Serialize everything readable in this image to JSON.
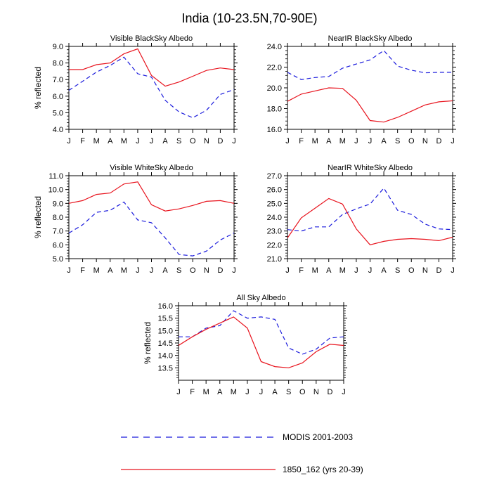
{
  "figure": {
    "title": "India (10-23.5N,70-90E)"
  },
  "colors": {
    "modis": "#1a1adc",
    "model": "#e8141e",
    "axis": "#000000"
  },
  "legend": {
    "placement": "bottom-center",
    "entries": [
      {
        "label": "MODIS 2001-2003",
        "style": "dashed",
        "color": "#1a1adc"
      },
      {
        "label": "1850_162 (yrs 20-39)",
        "style": "solid",
        "color": "#e8141e"
      }
    ]
  },
  "chart_data": [
    {
      "type": "line",
      "title": "Visible BlackSky Albedo",
      "ylabel": "% reflected",
      "xlabel": "",
      "categories": [
        "J",
        "F",
        "M",
        "A",
        "M",
        "J",
        "J",
        "A",
        "S",
        "O",
        "N",
        "D",
        "J"
      ],
      "ylim": [
        4.0,
        9.0
      ],
      "yticks": [
        4.0,
        5.0,
        6.0,
        7.0,
        8.0,
        9.0
      ],
      "ytick_labels": [
        "4.0",
        "5.0",
        "6.0",
        "7.0",
        "8.0",
        "9.0"
      ],
      "series": [
        {
          "name": "MODIS 2001-2003",
          "values": [
            6.35,
            6.9,
            7.45,
            7.85,
            8.35,
            7.35,
            7.15,
            5.75,
            5.05,
            4.7,
            5.15,
            6.1,
            6.4
          ]
        },
        {
          "name": "1850_162 (yrs 20-39)",
          "values": [
            7.6,
            7.6,
            7.9,
            8.0,
            8.55,
            8.85,
            7.25,
            6.6,
            6.85,
            7.2,
            7.55,
            7.7,
            7.6
          ]
        }
      ]
    },
    {
      "type": "line",
      "title": "NearIR BlackSky Albedo",
      "ylabel": "",
      "xlabel": "",
      "categories": [
        "J",
        "F",
        "M",
        "A",
        "M",
        "J",
        "J",
        "A",
        "S",
        "O",
        "N",
        "D",
        "J"
      ],
      "ylim": [
        16.0,
        24.0
      ],
      "yticks": [
        16.0,
        18.0,
        20.0,
        22.0,
        24.0
      ],
      "ytick_labels": [
        "16.0",
        "18.0",
        "20.0",
        "22.0",
        "24.0"
      ],
      "series": [
        {
          "name": "MODIS 2001-2003",
          "values": [
            21.5,
            20.8,
            21.0,
            21.1,
            21.9,
            22.3,
            22.7,
            23.6,
            22.1,
            21.7,
            21.45,
            21.5,
            21.5
          ]
        },
        {
          "name": "1850_162 (yrs 20-39)",
          "values": [
            18.7,
            19.4,
            19.7,
            20.0,
            19.95,
            18.8,
            16.85,
            16.7,
            17.15,
            17.75,
            18.35,
            18.65,
            18.75
          ]
        }
      ]
    },
    {
      "type": "line",
      "title": "Visible WhiteSky Albedo",
      "ylabel": "% reflected",
      "xlabel": "",
      "categories": [
        "J",
        "F",
        "M",
        "A",
        "M",
        "J",
        "J",
        "A",
        "S",
        "O",
        "N",
        "D",
        "J"
      ],
      "ylim": [
        5.0,
        11.0
      ],
      "yticks": [
        5.0,
        6.0,
        7.0,
        8.0,
        9.0,
        10.0,
        11.0
      ],
      "ytick_labels": [
        "5.0",
        "6.0",
        "7.0",
        "8.0",
        "9.0",
        "10.0",
        "11.0"
      ],
      "series": [
        {
          "name": "MODIS 2001-2003",
          "values": [
            6.85,
            7.45,
            8.35,
            8.5,
            9.1,
            7.8,
            7.6,
            6.5,
            5.3,
            5.2,
            5.55,
            6.35,
            6.85
          ]
        },
        {
          "name": "1850_162 (yrs 20-39)",
          "values": [
            9.0,
            9.2,
            9.65,
            9.75,
            10.4,
            10.55,
            8.9,
            8.45,
            8.6,
            8.85,
            9.15,
            9.2,
            9.0
          ]
        }
      ]
    },
    {
      "type": "line",
      "title": "NearIR WhiteSky Albedo",
      "ylabel": "",
      "xlabel": "",
      "categories": [
        "J",
        "F",
        "M",
        "A",
        "M",
        "J",
        "J",
        "A",
        "S",
        "O",
        "N",
        "D",
        "J"
      ],
      "ylim": [
        21.0,
        27.0
      ],
      "yticks": [
        21.0,
        22.0,
        23.0,
        24.0,
        25.0,
        26.0,
        27.0
      ],
      "ytick_labels": [
        "21.0",
        "22.0",
        "23.0",
        "24.0",
        "25.0",
        "26.0",
        "27.0"
      ],
      "series": [
        {
          "name": "MODIS 2001-2003",
          "values": [
            23.1,
            23.0,
            23.3,
            23.3,
            24.2,
            24.6,
            24.95,
            26.1,
            24.5,
            24.2,
            23.5,
            23.15,
            23.1
          ]
        },
        {
          "name": "1850_162 (yrs 20-39)",
          "values": [
            22.5,
            23.95,
            24.65,
            25.35,
            24.95,
            23.15,
            22.0,
            22.25,
            22.4,
            22.45,
            22.4,
            22.3,
            22.55
          ]
        }
      ]
    },
    {
      "type": "line",
      "title": "All Sky Albedo",
      "ylabel": "% reflected",
      "xlabel": "",
      "categories": [
        "J",
        "F",
        "M",
        "A",
        "M",
        "J",
        "J",
        "A",
        "S",
        "O",
        "N",
        "D",
        "J"
      ],
      "ylim": [
        13.0,
        16.0
      ],
      "yticks": [
        13.5,
        14.0,
        14.5,
        15.0,
        15.5,
        16.0
      ],
      "ytick_labels": [
        "13.5",
        "14.0",
        "14.5",
        "15.0",
        "15.5",
        "16.0"
      ],
      "series": [
        {
          "name": "MODIS 2001-2003",
          "values": [
            14.75,
            14.75,
            15.1,
            15.2,
            15.8,
            15.5,
            15.55,
            15.45,
            14.3,
            14.05,
            14.25,
            14.7,
            14.75
          ]
        },
        {
          "name": "1850_162 (yrs 20-39)",
          "values": [
            14.4,
            14.75,
            15.05,
            15.3,
            15.55,
            15.1,
            13.75,
            13.55,
            13.5,
            13.7,
            14.15,
            14.45,
            14.4
          ]
        }
      ]
    }
  ]
}
